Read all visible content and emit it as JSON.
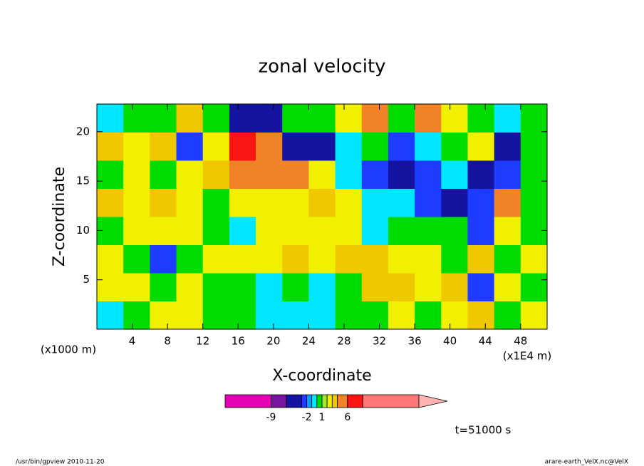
{
  "chart_data": {
    "type": "contour",
    "title": "zonal velocity",
    "x_label": "X-coordinate",
    "y_label": "Z-coordinate",
    "x_unit": "(x1E4 m)",
    "y_unit": "(x1000 m)",
    "time_label": "t=51000 s",
    "footer_left": "/usr/bin/gpview  2010-11-20",
    "footer_right": "arare-earth_VelX.nc@VelX",
    "xlim": [
      0,
      51
    ],
    "ylim": [
      0,
      22.8
    ],
    "xticks": [
      4,
      8,
      12,
      16,
      20,
      24,
      28,
      32,
      36,
      40,
      44,
      48
    ],
    "yticks": [
      5,
      10,
      15,
      20
    ],
    "x": [
      1.5,
      4.5,
      7.5,
      10.5,
      13.5,
      16.5,
      19.5,
      22.5,
      25.5,
      28.5,
      31.5,
      34.5,
      37.5,
      40.5,
      43.5,
      46.5,
      49.5
    ],
    "y": [
      1.4,
      4.3,
      7.1,
      10,
      12.8,
      15.7,
      18.5,
      21.4
    ],
    "z": [
      [
        -0.5,
        0.5,
        2.5,
        2.5,
        0.5,
        0.5,
        -0.5,
        -0.5,
        -0.5,
        0.5,
        0.5,
        2.5,
        0.5,
        2.5,
        3.5,
        0.5,
        2.5
      ],
      [
        2.5,
        2.5,
        0.5,
        2.5,
        0.5,
        0.5,
        -0.5,
        0.5,
        -0.5,
        0.5,
        3.5,
        3.5,
        2.5,
        3.5,
        -2.5,
        2.5,
        0.5
      ],
      [
        2.5,
        0.5,
        -2.5,
        0.5,
        2.5,
        2.5,
        2.5,
        3.5,
        2.5,
        3.5,
        3.5,
        2.5,
        2.5,
        0.5,
        3.5,
        0.5,
        2.5
      ],
      [
        0.5,
        2.5,
        2.5,
        2.5,
        0.5,
        -0.5,
        2.5,
        2.5,
        2.5,
        2.5,
        -0.5,
        0.5,
        0.5,
        0.5,
        -2.5,
        2.5,
        0.5
      ],
      [
        3.5,
        2.5,
        3.5,
        2.5,
        0.5,
        2.5,
        2.5,
        2.5,
        3.5,
        2.5,
        -0.5,
        -0.5,
        -2.5,
        -4.5,
        -2.5,
        5,
        0.5
      ],
      [
        0.5,
        2.5,
        0.5,
        2.5,
        3.5,
        5,
        5,
        5,
        2.5,
        -0.5,
        -2.5,
        -4.5,
        -2.5,
        -0.5,
        -4.5,
        -2.5,
        0.5
      ],
      [
        3.5,
        2.5,
        3.5,
        -2.5,
        2.5,
        7,
        5,
        -4.5,
        -4.5,
        -0.5,
        0.5,
        -2.5,
        -0.5,
        0.5,
        2.5,
        -4.5,
        0.5
      ],
      [
        -0.5,
        0.5,
        0.5,
        3.5,
        0.5,
        -4.5,
        -4.5,
        0.5,
        0.5,
        2.5,
        5,
        0.5,
        5,
        2.5,
        0.5,
        -0.5,
        0.5
      ]
    ],
    "levels": [
      -18,
      -9,
      -6,
      -3,
      -2,
      -1,
      0,
      1,
      2,
      3,
      4,
      6,
      9,
      20
    ],
    "colors": [
      "#e600b4",
      "#7814a0",
      "#1414a0",
      "#1e3cff",
      "#00a0ff",
      "#00e6ff",
      "#00dc00",
      "#a0e632",
      "#f0f000",
      "#f0c800",
      "#f08228",
      "#fa1414",
      "#ff7878"
    ],
    "extend_color": "#ffb4b4",
    "colorbar_ticks": [
      -9,
      -2,
      1,
      6
    ]
  }
}
